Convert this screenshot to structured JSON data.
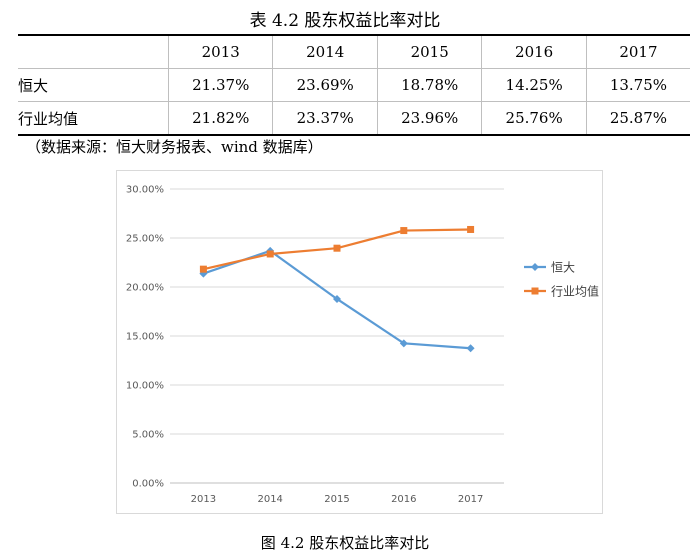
{
  "table": {
    "title": "表 4.2 股东权益比率对比",
    "header": [
      "",
      "2013",
      "2014",
      "2015",
      "2016",
      "2017"
    ],
    "rows": [
      {
        "label": "恒大",
        "values": [
          "21.37%",
          "23.69%",
          "18.78%",
          "14.25%",
          "13.75%"
        ]
      },
      {
        "label": "行业均值",
        "values": [
          "21.82%",
          "23.37%",
          "23.96%",
          "25.76%",
          "25.87%"
        ]
      }
    ]
  },
  "source_note": "（数据来源：恒大财务报表、wind 数据库）",
  "figure_caption": "图 4.2 股东权益比率对比",
  "chart_data": {
    "type": "line",
    "x": [
      "2013",
      "2014",
      "2015",
      "2016",
      "2017"
    ],
    "series": [
      {
        "name": "恒大",
        "values": [
          21.37,
          23.69,
          18.78,
          14.25,
          13.75
        ],
        "color": "#5b9bd5",
        "marker": "diamond"
      },
      {
        "name": "行业均值",
        "values": [
          21.82,
          23.37,
          23.96,
          25.76,
          25.87
        ],
        "color": "#ed7d31",
        "marker": "square"
      }
    ],
    "ylim": [
      0,
      30
    ],
    "yticks": [
      0,
      5,
      10,
      15,
      20,
      25,
      30
    ],
    "ytick_labels": [
      "0.00%",
      "5.00%",
      "10.00%",
      "15.00%",
      "20.00%",
      "25.00%",
      "30.00%"
    ],
    "grid": true,
    "legend": "right",
    "title": "",
    "xlabel": "",
    "ylabel": ""
  }
}
